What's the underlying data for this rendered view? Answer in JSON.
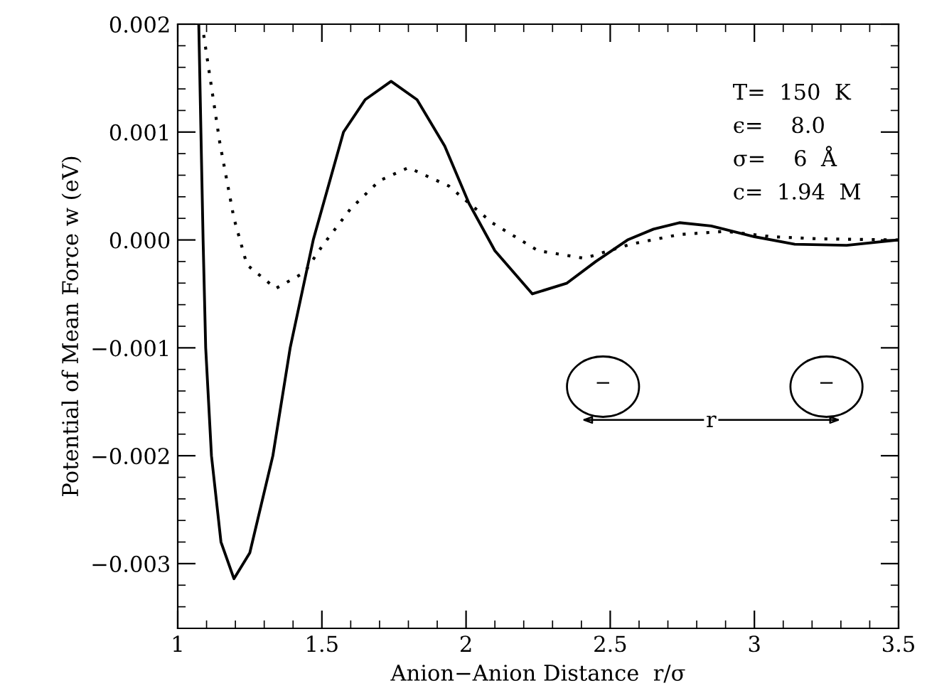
{
  "chart_data": {
    "type": "line",
    "xlabel": "Anion−Anion Distance  r/σ",
    "ylabel": "Potential of Mean Force w (eV)",
    "xlim": [
      1,
      3.5
    ],
    "ylim": [
      -0.0036,
      0.002
    ],
    "xticks": [
      1,
      1.5,
      2,
      2.5,
      3,
      3.5
    ],
    "yticks": [
      {
        "value": 0.002,
        "label": "0.002"
      },
      {
        "value": 0.001,
        "label": "0.001"
      },
      {
        "value": 0,
        "label": "0.000"
      },
      {
        "value": -0.001,
        "label": "−0.001"
      },
      {
        "value": -0.002,
        "label": "−0.002"
      },
      {
        "value": -0.003,
        "label": "−0.003"
      }
    ],
    "grid": false,
    "legend": false,
    "marker": "none",
    "series": [
      {
        "color": "#000000",
        "line_style": "solid",
        "x": [
          1.073,
          1.088,
          1.097,
          1.117,
          1.15,
          1.195,
          1.25,
          1.33,
          1.39,
          1.47,
          1.575,
          1.65,
          1.74,
          1.83,
          1.926,
          2.01,
          2.1,
          2.23,
          2.35,
          2.45,
          2.56,
          2.65,
          2.74,
          2.85,
          3.0,
          3.14,
          3.32,
          3.5
        ],
        "values": [
          0.002,
          0,
          -0.001,
          -0.002,
          -0.0028,
          -0.00314,
          -0.0029,
          -0.002,
          -0.001,
          0,
          0.001,
          0.0013,
          0.00147,
          0.0013,
          0.00087,
          0.00034,
          -0.0001,
          -0.0005,
          -0.0004,
          -0.0002,
          0,
          0.0001,
          0.00016,
          0.00013,
          3e-05,
          -4e-05,
          -5e-05,
          0
        ]
      },
      {
        "color": "#000000",
        "line_style": "dotted",
        "x": [
          1.09,
          1.146,
          1.195,
          1.24,
          1.34,
          1.44,
          1.5,
          1.6,
          1.7,
          1.8,
          1.94,
          2.09,
          2.25,
          2.41,
          2.57,
          2.74,
          2.9,
          3.06,
          3.23,
          3.5
        ],
        "values": [
          0.0019,
          0.0009,
          0.0002,
          -0.00023,
          -0.00045,
          -0.0003,
          -6e-05,
          0.00029,
          0.00055,
          0.00067,
          0.0005,
          0.00016,
          -0.0001,
          -0.00017,
          -4e-05,
          5e-05,
          8e-05,
          3e-05,
          1e-05,
          0
        ]
      }
    ],
    "annotations": [
      "T=  150  K",
      "ϵ=    8.0",
      "σ=    6  Å",
      "c=  1.94  M",
      "−",
      "−",
      "r"
    ]
  }
}
